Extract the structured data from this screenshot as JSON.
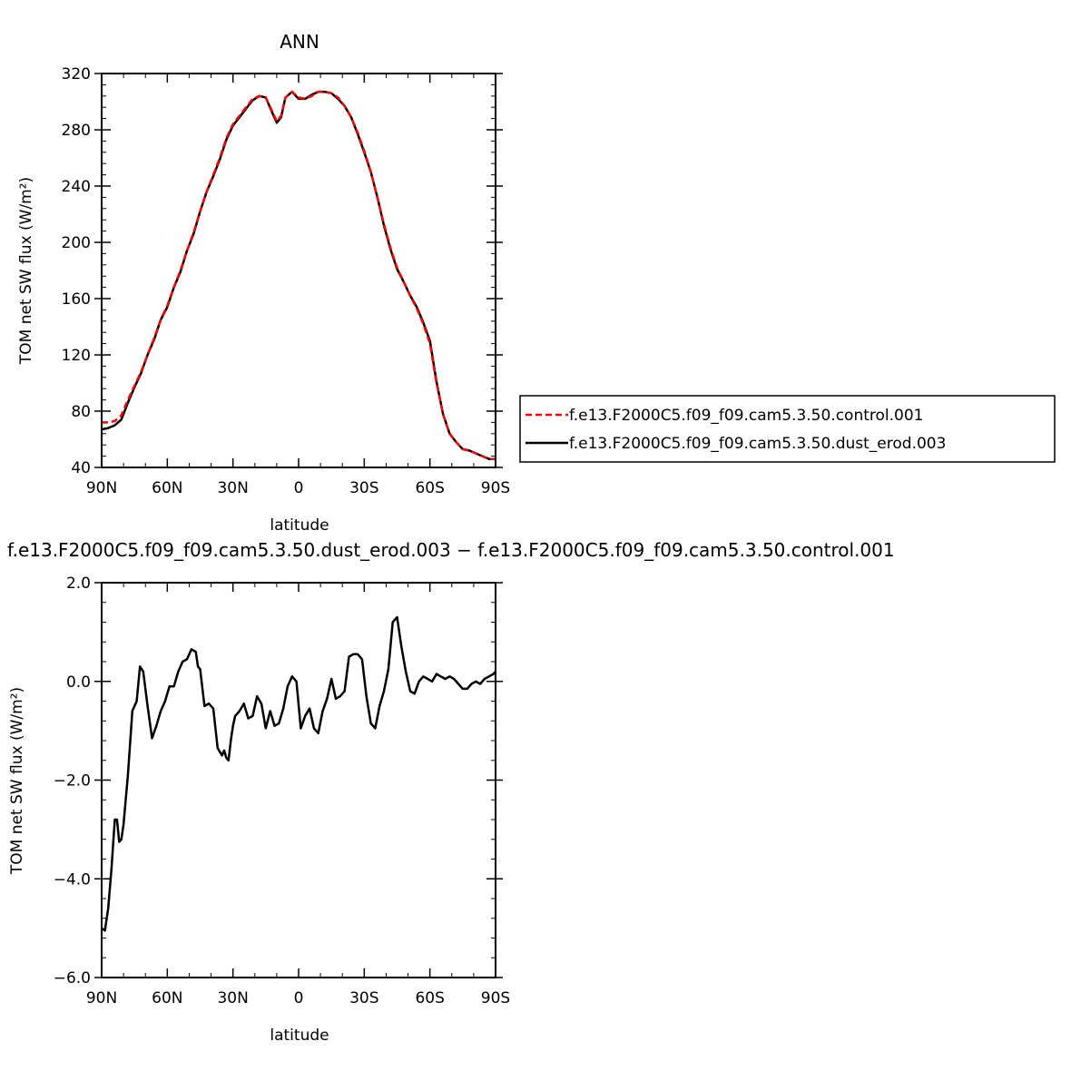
{
  "chart_data": [
    {
      "type": "line",
      "title": "ANN",
      "xlabel": "latitude",
      "ylabel": "TOM net SW flux (W/m²)",
      "xlim": [
        90,
        -90
      ],
      "ylim": [
        40,
        320
      ],
      "x_tick_values": [
        90,
        60,
        30,
        0,
        -30,
        -60,
        -90
      ],
      "x_tick_labels": [
        "90N",
        "60N",
        "30N",
        "0",
        "30S",
        "60S",
        "90S"
      ],
      "y_tick_values": [
        40,
        80,
        120,
        160,
        200,
        240,
        280,
        320
      ],
      "y_tick_labels": [
        "40",
        "80",
        "120",
        "160",
        "200",
        "240",
        "280",
        "320"
      ],
      "legend": {
        "placement": "right",
        "entries": [
          {
            "label": "f.e13.F2000C5.f09_f09.cam5.3.50.control.001",
            "color": "#ff0000",
            "style": "dashed"
          },
          {
            "label": "f.e13.F2000C5.f09_f09.cam5.3.50.dust_erod.003",
            "color": "#000000",
            "style": "solid"
          }
        ]
      },
      "series": [
        {
          "name": "f.e13.F2000C5.f09_f09.cam5.3.50.control.001",
          "color": "#ff0000",
          "style": "dashed",
          "x": [
            90,
            87,
            84,
            81,
            78,
            75,
            72,
            69,
            66,
            63,
            60,
            57,
            54,
            51,
            48,
            45,
            42,
            39,
            36,
            33,
            30,
            27,
            24,
            21,
            18,
            15,
            12,
            10,
            8,
            6,
            3,
            0,
            -3,
            -6,
            -9,
            -12,
            -15,
            -18,
            -21,
            -24,
            -27,
            -30,
            -33,
            -36,
            -39,
            -42,
            -45,
            -48,
            -51,
            -54,
            -57,
            -60,
            -63,
            -66,
            -69,
            -72,
            -75,
            -78,
            -81,
            -84,
            -87,
            -90
          ],
          "y": [
            72,
            72,
            73,
            77,
            88,
            98,
            108,
            120,
            132,
            145,
            155,
            168,
            180,
            194,
            207,
            222,
            236,
            248,
            260,
            274,
            284,
            290,
            296,
            302,
            304,
            303,
            293,
            286,
            290,
            303,
            307,
            303,
            302,
            304,
            307,
            307,
            306,
            303,
            297,
            289,
            278,
            265,
            250,
            232,
            213,
            196,
            182,
            172,
            162,
            153,
            142,
            128,
            100,
            78,
            64,
            58,
            53,
            52,
            50,
            48,
            46,
            46
          ]
        },
        {
          "name": "f.e13.F2000C5.f09_f09.cam5.3.50.dust_erod.003",
          "color": "#000000",
          "style": "solid",
          "x": [
            90,
            87,
            84,
            81,
            78,
            75,
            72,
            69,
            66,
            63,
            60,
            57,
            54,
            51,
            48,
            45,
            42,
            39,
            36,
            33,
            30,
            27,
            24,
            21,
            18,
            15,
            12,
            10,
            8,
            6,
            3,
            0,
            -3,
            -6,
            -9,
            -12,
            -15,
            -18,
            -21,
            -24,
            -27,
            -30,
            -33,
            -36,
            -39,
            -42,
            -45,
            -48,
            -51,
            -54,
            -57,
            -60,
            -63,
            -66,
            -69,
            -72,
            -75,
            -78,
            -81,
            -84,
            -87,
            -90
          ],
          "y": [
            67,
            68,
            70,
            74,
            86,
            97,
            107,
            120,
            131,
            145,
            154,
            168,
            179,
            194,
            206,
            222,
            236,
            247,
            259,
            273,
            283,
            289,
            295,
            301,
            304,
            303,
            292,
            285,
            289,
            303,
            307,
            302,
            302,
            305,
            307,
            307,
            306,
            302,
            297,
            289,
            277,
            264,
            250,
            232,
            212,
            195,
            181,
            172,
            162,
            154,
            143,
            130,
            101,
            78,
            64,
            58,
            53,
            52,
            50,
            48,
            46,
            46
          ]
        }
      ]
    },
    {
      "type": "line",
      "title": "f.e13.F2000C5.f09_f09.cam5.3.50.dust_erod.003 − f.e13.F2000C5.f09_f09.cam5.3.50.control.001",
      "xlabel": "latitude",
      "ylabel": "TOM net SW flux (W/m²)",
      "xlim": [
        90,
        -90
      ],
      "ylim": [
        -6,
        2
      ],
      "x_tick_values": [
        90,
        60,
        30,
        0,
        -30,
        -60,
        -90
      ],
      "x_tick_labels": [
        "90N",
        "60N",
        "30N",
        "0",
        "30S",
        "60S",
        "90S"
      ],
      "y_tick_values": [
        -6,
        -4,
        -2,
        0,
        2
      ],
      "y_tick_labels": [
        "−6.0",
        "−4.0",
        "−2.0",
        "0.0",
        "2.0"
      ],
      "series": [
        {
          "name": "difference",
          "color": "#000000",
          "style": "solid",
          "x": [
            90,
            88.5,
            87,
            85.5,
            84,
            83,
            82,
            81,
            80,
            78,
            76,
            74,
            72.5,
            71,
            69,
            67,
            65,
            63,
            61,
            59,
            57,
            55,
            53,
            51,
            49,
            47,
            46,
            45,
            43,
            41,
            39,
            37,
            35,
            34,
            33,
            32,
            31,
            30,
            29,
            27,
            25,
            23,
            21,
            19,
            17,
            15,
            13,
            11,
            9,
            7,
            5,
            3,
            1,
            -1,
            -3,
            -5,
            -7,
            -9,
            -11,
            -13,
            -15,
            -17,
            -19,
            -21,
            -23,
            -25,
            -27,
            -29,
            -31,
            -33,
            -35,
            -37,
            -39,
            -41,
            -43,
            -45,
            -47,
            -49,
            -51,
            -53,
            -55,
            -57,
            -59,
            -61,
            -63,
            -65,
            -67,
            -69,
            -71,
            -73,
            -75,
            -77,
            -79,
            -81,
            -83,
            -85,
            -87,
            -89,
            -90
          ],
          "y": [
            -5.0,
            -5.05,
            -4.6,
            -3.8,
            -2.8,
            -2.8,
            -3.25,
            -3.2,
            -2.9,
            -1.9,
            -0.6,
            -0.4,
            0.3,
            0.2,
            -0.5,
            -1.15,
            -0.9,
            -0.6,
            -0.4,
            -0.1,
            -0.1,
            0.2,
            0.4,
            0.45,
            0.65,
            0.6,
            0.3,
            0.25,
            -0.5,
            -0.45,
            -0.55,
            -1.35,
            -1.5,
            -1.4,
            -1.55,
            -1.6,
            -1.2,
            -0.9,
            -0.7,
            -0.6,
            -0.45,
            -0.75,
            -0.7,
            -0.3,
            -0.45,
            -0.95,
            -0.6,
            -0.9,
            -0.85,
            -0.55,
            -0.1,
            0.1,
            0.0,
            -0.95,
            -0.7,
            -0.55,
            -0.95,
            -1.05,
            -0.6,
            -0.35,
            0.05,
            -0.35,
            -0.3,
            -0.2,
            0.5,
            0.55,
            0.55,
            0.45,
            -0.3,
            -0.85,
            -0.95,
            -0.5,
            -0.2,
            0.25,
            1.2,
            1.3,
            0.7,
            0.2,
            -0.2,
            -0.25,
            0.0,
            0.1,
            0.05,
            0.0,
            0.15,
            0.1,
            0.05,
            0.1,
            0.05,
            -0.05,
            -0.15,
            -0.15,
            -0.05,
            0.0,
            -0.05,
            0.05,
            0.1,
            0.15,
            0.2
          ]
        }
      ]
    }
  ]
}
